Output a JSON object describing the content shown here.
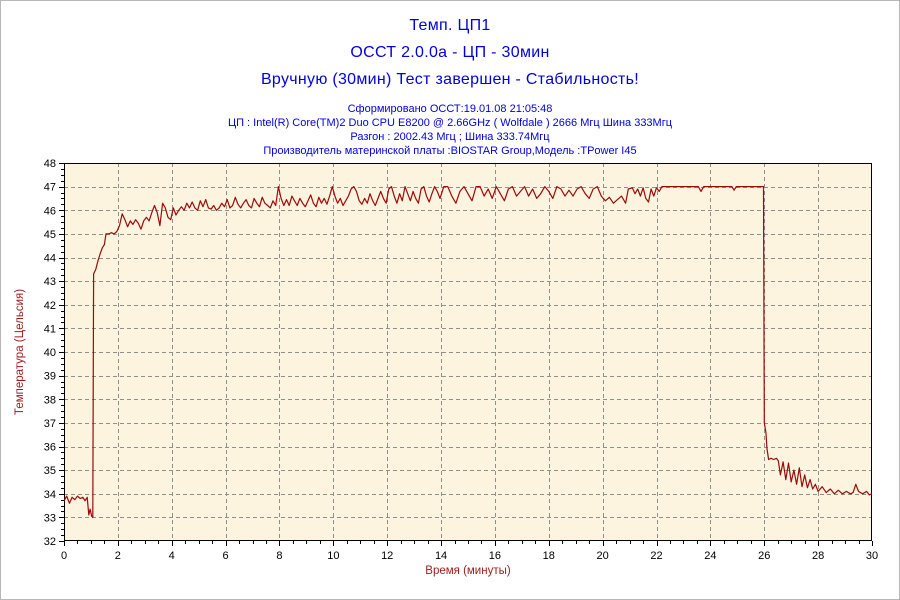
{
  "page": {
    "border_color": "#b8b8b8",
    "background": "#ffffff"
  },
  "header": {
    "title_color": "#0000dd",
    "info_color": "#0000dd",
    "title_lines": [
      "Темп. ЦП1",
      "ОССТ 2.0.0а - ЦП - 30мин",
      "Вручную (30мин) Тест завершен - Стабильность!"
    ],
    "info_lines": [
      "Сформировано ОССТ:19.01.08 21:05:48",
      "ЦП : Intel(R) Core(TM)2 Duo CPU E8200 @ 2.66GHz ( Wolfdale ) 2666 Мгц Шина 333Мгц",
      "Разгон : 2002.43 Мгц ; Шина 333.74Мгц",
      "Производитель материнской платы :BIOSTAR Group,Модель :TPower I45"
    ]
  },
  "chart_data": {
    "type": "line",
    "title": "Темп. ЦП1",
    "xlabel": "Время (минуты)",
    "ylabel": "Температура (Цельсия)",
    "xlim": [
      0,
      30
    ],
    "ylim": [
      32,
      48
    ],
    "x_tick_step": 2,
    "y_tick_step": 1,
    "x_minor_step": 0.5,
    "y_minor_step": 0.25,
    "grid": "dashed",
    "grid_color": "#8f8f8f",
    "plot_bg": "#fcf4df",
    "axis_color": "#000000",
    "tick_label_color": "#000000",
    "axis_label_color": "#9b1b1b",
    "line_color": "#9a0b0b",
    "series_name": "Темп. ЦП1",
    "points": [
      [
        0,
        33.7
      ],
      [
        0.1,
        33.9
      ],
      [
        0.2,
        33.6
      ],
      [
        0.3,
        33.85
      ],
      [
        0.4,
        33.75
      ],
      [
        0.5,
        33.9
      ],
      [
        0.6,
        33.8
      ],
      [
        0.7,
        33.85
      ],
      [
        0.78,
        33.7
      ],
      [
        0.86,
        33.85
      ],
      [
        0.92,
        33.1
      ],
      [
        0.97,
        33.35
      ],
      [
        1.03,
        33.05
      ],
      [
        1.07,
        33.0
      ],
      [
        1.1,
        43.3
      ],
      [
        1.18,
        43.5
      ],
      [
        1.26,
        43.85
      ],
      [
        1.34,
        44.15
      ],
      [
        1.42,
        44.4
      ],
      [
        1.5,
        44.55
      ],
      [
        1.56,
        45.0
      ],
      [
        1.66,
        45.0
      ],
      [
        1.76,
        45.05
      ],
      [
        1.86,
        45.0
      ],
      [
        1.96,
        45.1
      ],
      [
        2.06,
        45.35
      ],
      [
        2.16,
        45.85
      ],
      [
        2.26,
        45.6
      ],
      [
        2.36,
        45.3
      ],
      [
        2.46,
        45.55
      ],
      [
        2.56,
        45.4
      ],
      [
        2.66,
        45.6
      ],
      [
        2.76,
        45.45
      ],
      [
        2.86,
        45.2
      ],
      [
        2.96,
        45.55
      ],
      [
        3.06,
        45.7
      ],
      [
        3.16,
        45.55
      ],
      [
        3.26,
        45.9
      ],
      [
        3.36,
        46.2
      ],
      [
        3.46,
        45.9
      ],
      [
        3.56,
        45.35
      ],
      [
        3.66,
        46.3
      ],
      [
        3.76,
        46.1
      ],
      [
        3.86,
        45.7
      ],
      [
        3.96,
        45.6
      ],
      [
        4.06,
        46.1
      ],
      [
        4.16,
        45.8
      ],
      [
        4.26,
        46.0
      ],
      [
        4.36,
        46.15
      ],
      [
        4.46,
        46.0
      ],
      [
        4.56,
        46.3
      ],
      [
        4.66,
        46.1
      ],
      [
        4.76,
        46.35
      ],
      [
        4.86,
        46.1
      ],
      [
        4.96,
        46.0
      ],
      [
        5.06,
        46.4
      ],
      [
        5.16,
        46.15
      ],
      [
        5.26,
        46.45
      ],
      [
        5.36,
        46.1
      ],
      [
        5.46,
        46.05
      ],
      [
        5.56,
        46.2
      ],
      [
        5.66,
        46.0
      ],
      [
        5.76,
        46.1
      ],
      [
        5.86,
        46.3
      ],
      [
        5.96,
        46.15
      ],
      [
        6.06,
        46.45
      ],
      [
        6.16,
        46.1
      ],
      [
        6.26,
        46.2
      ],
      [
        6.36,
        46.55
      ],
      [
        6.46,
        46.25
      ],
      [
        6.56,
        46.1
      ],
      [
        6.66,
        46.3
      ],
      [
        6.76,
        46.45
      ],
      [
        6.86,
        46.2
      ],
      [
        6.96,
        46.1
      ],
      [
        7.06,
        46.5
      ],
      [
        7.16,
        46.3
      ],
      [
        7.26,
        46.15
      ],
      [
        7.36,
        46.55
      ],
      [
        7.46,
        46.3
      ],
      [
        7.56,
        46.2
      ],
      [
        7.66,
        46.1
      ],
      [
        7.76,
        46.4
      ],
      [
        7.86,
        46.2
      ],
      [
        7.96,
        47.0
      ],
      [
        8.06,
        46.5
      ],
      [
        8.16,
        46.2
      ],
      [
        8.26,
        46.45
      ],
      [
        8.36,
        46.2
      ],
      [
        8.46,
        46.6
      ],
      [
        8.56,
        46.4
      ],
      [
        8.66,
        46.2
      ],
      [
        8.76,
        46.5
      ],
      [
        8.86,
        46.3
      ],
      [
        8.96,
        46.15
      ],
      [
        9.06,
        46.4
      ],
      [
        9.16,
        46.65
      ],
      [
        9.26,
        46.3
      ],
      [
        9.36,
        46.15
      ],
      [
        9.46,
        46.55
      ],
      [
        9.56,
        46.3
      ],
      [
        9.66,
        46.5
      ],
      [
        9.76,
        46.25
      ],
      [
        9.86,
        46.6
      ],
      [
        9.96,
        47.0
      ],
      [
        10.06,
        46.6
      ],
      [
        10.16,
        46.3
      ],
      [
        10.26,
        46.5
      ],
      [
        10.36,
        46.2
      ],
      [
        10.46,
        46.4
      ],
      [
        10.56,
        46.6
      ],
      [
        10.66,
        46.9
      ],
      [
        10.76,
        47.0
      ],
      [
        10.86,
        46.8
      ],
      [
        10.96,
        46.4
      ],
      [
        11.06,
        46.25
      ],
      [
        11.16,
        46.5
      ],
      [
        11.26,
        46.3
      ],
      [
        11.36,
        46.7
      ],
      [
        11.46,
        46.4
      ],
      [
        11.56,
        46.2
      ],
      [
        11.66,
        46.5
      ],
      [
        11.76,
        46.8
      ],
      [
        11.86,
        46.5
      ],
      [
        11.96,
        46.3
      ],
      [
        12.06,
        46.9
      ],
      [
        12.16,
        47.0
      ],
      [
        12.26,
        46.6
      ],
      [
        12.36,
        46.3
      ],
      [
        12.46,
        46.7
      ],
      [
        12.56,
        46.4
      ],
      [
        12.66,
        47.0
      ],
      [
        12.76,
        46.7
      ],
      [
        12.86,
        46.4
      ],
      [
        12.96,
        46.8
      ],
      [
        13.06,
        46.5
      ],
      [
        13.16,
        46.3
      ],
      [
        13.26,
        46.9
      ],
      [
        13.36,
        47.0
      ],
      [
        13.46,
        46.6
      ],
      [
        13.56,
        46.35
      ],
      [
        13.66,
        46.7
      ],
      [
        13.76,
        47.0
      ],
      [
        13.86,
        46.8
      ],
      [
        13.96,
        46.5
      ],
      [
        14.1,
        47.0
      ],
      [
        14.25,
        47.0
      ],
      [
        14.4,
        46.6
      ],
      [
        14.55,
        46.3
      ],
      [
        14.7,
        46.8
      ],
      [
        14.85,
        47.0
      ],
      [
        15.0,
        46.7
      ],
      [
        15.15,
        46.4
      ],
      [
        15.3,
        47.0
      ],
      [
        15.45,
        47.0
      ],
      [
        15.6,
        46.6
      ],
      [
        15.75,
        46.9
      ],
      [
        15.9,
        46.5
      ],
      [
        16.05,
        47.0
      ],
      [
        16.2,
        46.7
      ],
      [
        16.35,
        46.4
      ],
      [
        16.5,
        46.9
      ],
      [
        16.65,
        47.0
      ],
      [
        16.8,
        46.6
      ],
      [
        16.95,
        46.8
      ],
      [
        17.1,
        47.0
      ],
      [
        17.25,
        46.6
      ],
      [
        17.4,
        46.9
      ],
      [
        17.55,
        46.5
      ],
      [
        17.7,
        46.7
      ],
      [
        17.85,
        47.0
      ],
      [
        18.0,
        46.8
      ],
      [
        18.15,
        46.5
      ],
      [
        18.3,
        47.0
      ],
      [
        18.45,
        46.9
      ],
      [
        18.6,
        46.6
      ],
      [
        18.75,
        46.85
      ],
      [
        18.9,
        46.6
      ],
      [
        19.05,
        46.9
      ],
      [
        19.2,
        47.0
      ],
      [
        19.35,
        46.7
      ],
      [
        19.5,
        46.5
      ],
      [
        19.65,
        46.9
      ],
      [
        19.8,
        47.0
      ],
      [
        19.95,
        46.6
      ],
      [
        20.1,
        46.4
      ],
      [
        20.25,
        46.55
      ],
      [
        20.4,
        46.3
      ],
      [
        20.55,
        46.45
      ],
      [
        20.7,
        46.6
      ],
      [
        20.85,
        46.3
      ],
      [
        20.95,
        46.9
      ],
      [
        21.1,
        46.95
      ],
      [
        21.2,
        46.7
      ],
      [
        21.3,
        46.9
      ],
      [
        21.4,
        46.6
      ],
      [
        21.5,
        46.95
      ],
      [
        21.6,
        46.5
      ],
      [
        21.7,
        46.35
      ],
      [
        21.8,
        46.9
      ],
      [
        21.9,
        46.6
      ],
      [
        22.0,
        46.95
      ],
      [
        22.1,
        46.8
      ],
      [
        22.2,
        47.0
      ],
      [
        22.4,
        47.0
      ],
      [
        22.7,
        47.0
      ],
      [
        23.0,
        47.0
      ],
      [
        23.3,
        47.0
      ],
      [
        23.55,
        47.0
      ],
      [
        23.65,
        46.8
      ],
      [
        23.75,
        47.0
      ],
      [
        24.1,
        47.0
      ],
      [
        24.5,
        47.0
      ],
      [
        24.8,
        47.0
      ],
      [
        24.88,
        46.85
      ],
      [
        24.96,
        47.0
      ],
      [
        25.3,
        47.0
      ],
      [
        25.6,
        47.0
      ],
      [
        25.97,
        47.0
      ],
      [
        26.0,
        37.0
      ],
      [
        26.06,
        36.6
      ],
      [
        26.1,
        35.9
      ],
      [
        26.16,
        35.45
      ],
      [
        26.25,
        35.5
      ],
      [
        26.35,
        35.45
      ],
      [
        26.45,
        35.5
      ],
      [
        26.52,
        35.4
      ],
      [
        26.6,
        34.8
      ],
      [
        26.7,
        35.35
      ],
      [
        26.8,
        34.6
      ],
      [
        26.9,
        35.3
      ],
      [
        27.0,
        34.5
      ],
      [
        27.1,
        35.0
      ],
      [
        27.2,
        34.4
      ],
      [
        27.3,
        35.1
      ],
      [
        27.4,
        34.3
      ],
      [
        27.5,
        34.8
      ],
      [
        27.6,
        34.25
      ],
      [
        27.7,
        34.6
      ],
      [
        27.8,
        34.2
      ],
      [
        27.9,
        34.4
      ],
      [
        28.0,
        34.1
      ],
      [
        28.15,
        34.3
      ],
      [
        28.3,
        34.05
      ],
      [
        28.45,
        34.2
      ],
      [
        28.6,
        34.0
      ],
      [
        28.75,
        34.15
      ],
      [
        28.9,
        34.0
      ],
      [
        29.05,
        34.1
      ],
      [
        29.2,
        34.0
      ],
      [
        29.3,
        34.05
      ],
      [
        29.4,
        34.4
      ],
      [
        29.5,
        34.1
      ],
      [
        29.65,
        34.0
      ],
      [
        29.8,
        34.1
      ],
      [
        29.9,
        33.95
      ],
      [
        30.0,
        34.0
      ]
    ]
  }
}
